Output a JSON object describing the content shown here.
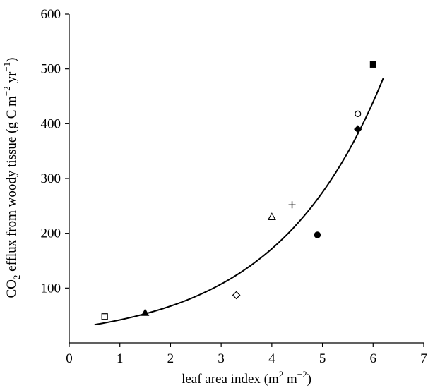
{
  "chart_data": {
    "type": "scatter",
    "title": "",
    "xlabel": {
      "base": "leaf area index (m",
      "sup1": "2",
      "mid": " m",
      "sup2": "−2",
      "end": ")"
    },
    "ylabel": {
      "pre": "CO",
      "sub": "2",
      "mid1": " efflux from woody tissue (g C m",
      "sup1": "−2",
      "mid2": " yr",
      "sup2": "−1",
      "end": ")"
    },
    "xlim": [
      0,
      7
    ],
    "ylim": [
      0,
      600
    ],
    "xticks": [
      0,
      1,
      2,
      3,
      4,
      5,
      6,
      7
    ],
    "yticks": [
      100,
      200,
      300,
      400,
      500,
      600
    ],
    "x_tick_labels": [
      "0",
      "1",
      "2",
      "3",
      "4",
      "5",
      "6",
      "7"
    ],
    "y_tick_labels": [
      "100",
      "200",
      "300",
      "400",
      "500",
      "600"
    ],
    "grid": false,
    "legend": "none",
    "points": [
      {
        "x": 0.7,
        "y": 48,
        "marker": "square-open"
      },
      {
        "x": 1.5,
        "y": 55,
        "marker": "triangle-filled"
      },
      {
        "x": 3.3,
        "y": 87,
        "marker": "diamond-open"
      },
      {
        "x": 4.0,
        "y": 230,
        "marker": "triangle-open"
      },
      {
        "x": 4.4,
        "y": 252,
        "marker": "plus"
      },
      {
        "x": 4.9,
        "y": 197,
        "marker": "circle-filled"
      },
      {
        "x": 5.7,
        "y": 418,
        "marker": "circle-open"
      },
      {
        "x": 5.7,
        "y": 390,
        "marker": "diamond-filled"
      },
      {
        "x": 6.0,
        "y": 508,
        "marker": "square-filled"
      }
    ],
    "fit": {
      "type": "exponential",
      "x_range": [
        0.5,
        6.2
      ],
      "a": 26.2,
      "b": 0.47
    },
    "colors": {
      "ink": "#000000",
      "background": "#ffffff"
    }
  }
}
